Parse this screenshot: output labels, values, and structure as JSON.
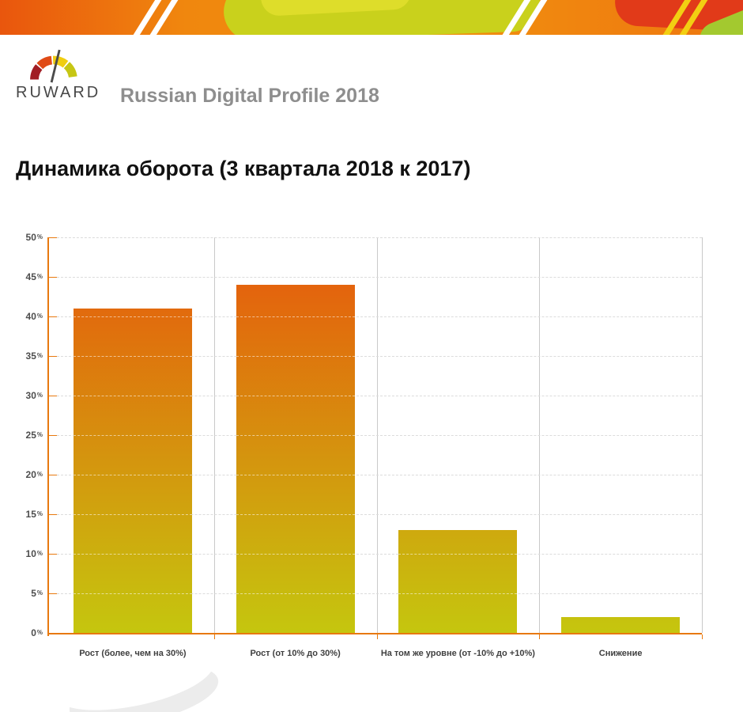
{
  "header": {
    "logo_text": "RUWARD",
    "subtitle": "Russian Digital Profile 2018"
  },
  "chart_data": {
    "type": "bar",
    "title": "Динамика оборота (3 квартала 2018 к 2017)",
    "categories": [
      "Рост (более, чем на 30%)",
      "Рост (от 10% до 30%)",
      "На том же уровне (от -10% до +10%)",
      "Снижение"
    ],
    "values": [
      41,
      44,
      13,
      2
    ],
    "xlabel": "",
    "ylabel": "",
    "ylim": [
      0,
      50
    ],
    "ytick_step": 5,
    "ytick_labels": [
      "0%",
      "5%",
      "10%",
      "15%",
      "20%",
      "25%",
      "30%",
      "35%",
      "40%",
      "45%",
      "50%"
    ],
    "grid": "horizontal-dashed",
    "legend": "none",
    "colors": {
      "bar_gradient_top": "#e8560d",
      "bar_gradient_bottom": "#c5c60e",
      "axis": "#e8790f",
      "gridline": "#dcdcdc",
      "tick_label": "#4d4d4d",
      "category_label": "#3f3f3f"
    }
  }
}
